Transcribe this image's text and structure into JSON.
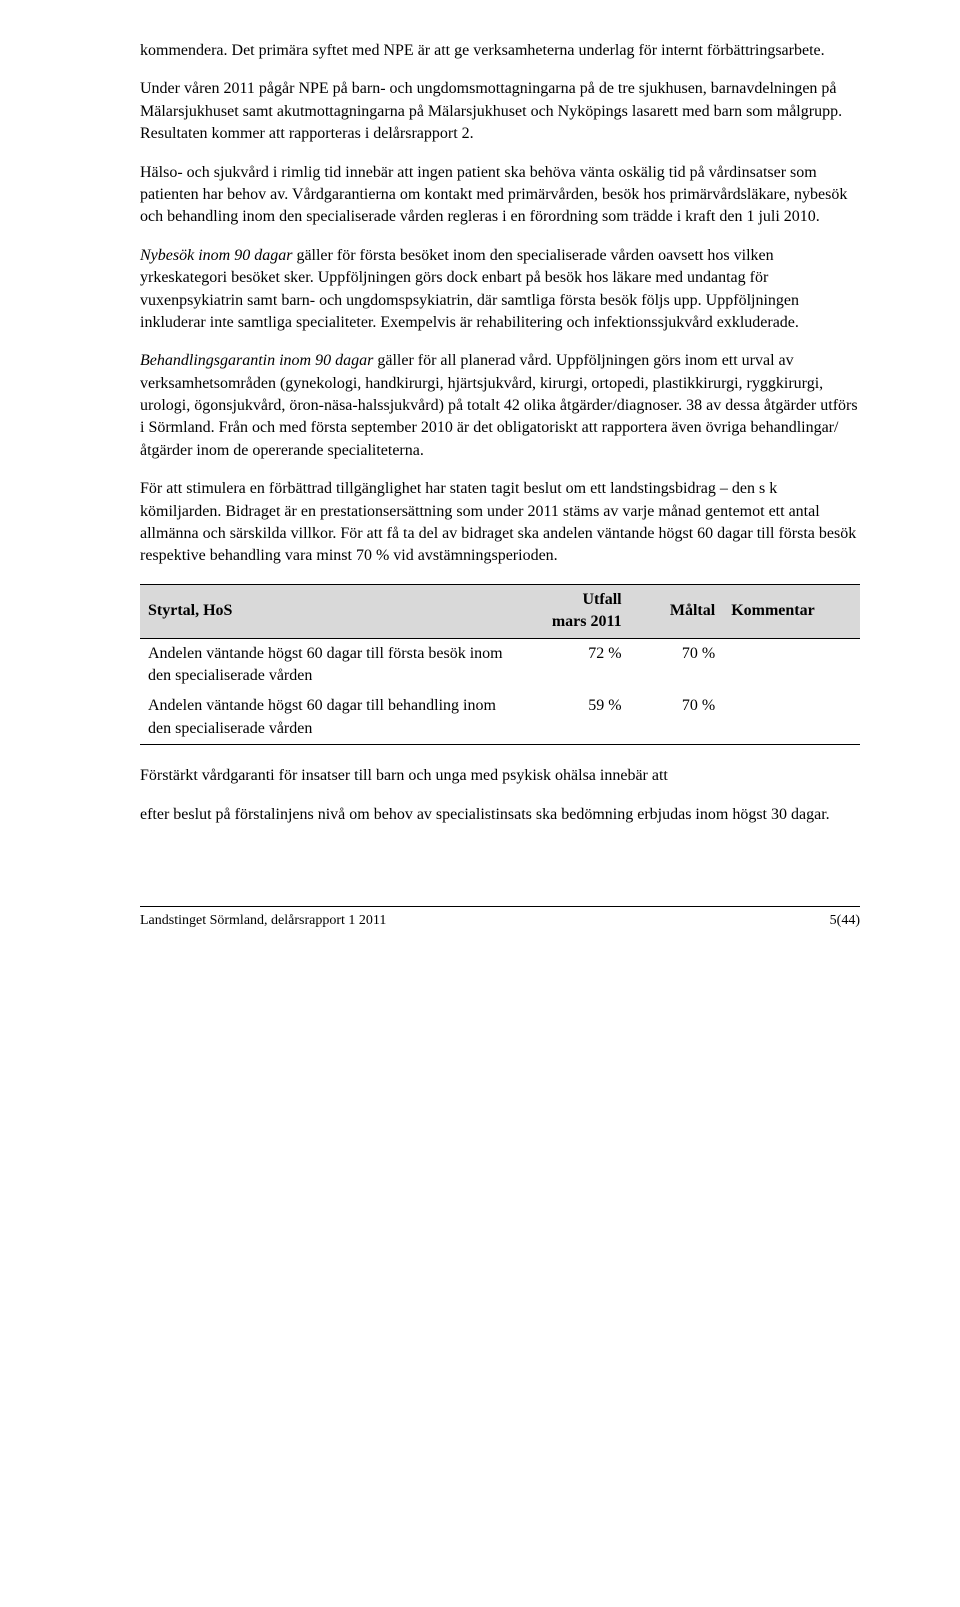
{
  "para1": "kommendera. Det primära syftet med NPE är att ge verksamheterna underlag för internt förbättringsarbete.",
  "para2": "Under våren 2011 pågår NPE på barn- och ungdomsmottagningarna på de tre sjukhusen, barnavdelningen på Mälarsjukhuset samt akutmottagningarna på Mälarsjukhuset och Nyköpings lasarett med barn som målgrupp. Resultaten kommer att rapporteras i delårsrapport 2.",
  "para3": "Hälso- och sjukvård i rimlig tid innebär att ingen patient ska behöva vänta oskälig tid på vårdinsatser som patienten har behov av. Vårdgarantierna om kontakt med primärvården, besök hos primärvårdsläkare, nybesök och behandling inom den specialiserade vården regleras i en förordning som trädde i kraft den 1 juli 2010.",
  "para4_italic": "Nybesök inom 90 dagar",
  "para4_rest": " gäller för första besöket inom den specialiserade vården oavsett hos vilken yrkeskategori besöket sker. Uppföljningen görs dock enbart på besök hos läkare med undantag för vuxenpsykiatrin samt barn- och ungdomspsykiatrin, där samtliga första besök följs upp. Uppföljningen inkluderar inte samtliga specialiteter. Exempelvis är rehabilitering och infektionssjukvård exkluderade.",
  "para5_italic": "Behandlingsgarantin inom 90 dagar",
  "para5_rest": " gäller för all planerad vård. Uppföljningen görs inom ett urval av verksamhetsområden (gynekologi, handkirurgi, hjärtsjukvård, kirurgi, ortopedi, plastikkirurgi, ryggkirurgi, urologi, ögonsjukvård, öron-näsa-halssjukvård) på totalt 42 olika åtgärder/diagnoser. 38 av dessa åtgärder utförs i Sörmland. Från och med första september 2010 är det obligatoriskt att rapportera även övriga behandlingar/åtgärder inom de opererande specialiteterna.",
  "para6": "För att stimulera en förbättrad tillgänglighet har staten tagit beslut om ett landstingsbidrag – den s k kömiljarden. Bidraget är en prestationsersättning som under 2011 stäms av varje månad gentemot ett antal allmänna och särskilda villkor. För att få ta del av bidraget ska andelen väntande högst 60 dagar till första besök respektive behandling vara minst 70 % vid avstämningsperioden.",
  "table": {
    "headers": {
      "styrtal": "Styrtal, HoS",
      "utfall_line1": "Utfall",
      "utfall_line2": "mars 2011",
      "maltal": "Måltal",
      "kommentar": "Kommentar"
    },
    "rows": [
      {
        "label": "Andelen väntande högst 60 dagar till första besök inom den specialiserade vården",
        "utfall": "72 %",
        "maltal": "70 %",
        "kommentar": ""
      },
      {
        "label": "Andelen väntande högst 60 dagar till behandling inom den specialiserade vården",
        "utfall": "59 %",
        "maltal": "70 %",
        "kommentar": ""
      }
    ]
  },
  "para7": "Förstärkt vårdgaranti för insatser till barn och unga med psykisk ohälsa innebär att",
  "para8": "efter beslut på förstalinjens nivå om behov av specialistinsats ska bedömning erbjudas inom högst 30 dagar.",
  "footer_left": "Landstinget Sörmland, delårsrapport 1 2011",
  "footer_right": "5(44)"
}
